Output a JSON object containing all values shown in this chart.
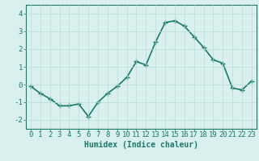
{
  "x": [
    0,
    1,
    2,
    3,
    4,
    5,
    6,
    7,
    8,
    9,
    10,
    11,
    12,
    13,
    14,
    15,
    16,
    17,
    18,
    19,
    20,
    21,
    22,
    23
  ],
  "y": [
    -0.1,
    -0.5,
    -0.8,
    -1.2,
    -1.2,
    -1.1,
    -1.8,
    -1.0,
    -0.5,
    -0.1,
    0.4,
    1.3,
    1.1,
    2.4,
    3.5,
    3.6,
    3.3,
    2.7,
    2.1,
    1.4,
    1.2,
    -0.2,
    -0.3,
    0.2
  ],
  "line_color": "#1a7a6a",
  "marker": "+",
  "marker_size": 4,
  "bg_color": "#d9f0ee",
  "grid_color": "#b8ddd8",
  "axis_color": "#1a7a6a",
  "xlabel": "Humidex (Indice chaleur)",
  "xlim": [
    -0.5,
    23.5
  ],
  "ylim": [
    -2.5,
    4.5
  ],
  "yticks": [
    -2,
    -1,
    0,
    1,
    2,
    3,
    4
  ],
  "xticks": [
    0,
    1,
    2,
    3,
    4,
    5,
    6,
    7,
    8,
    9,
    10,
    11,
    12,
    13,
    14,
    15,
    16,
    17,
    18,
    19,
    20,
    21,
    22,
    23
  ],
  "xlabel_fontsize": 7,
  "tick_fontsize": 6.5,
  "line_width": 1.2
}
